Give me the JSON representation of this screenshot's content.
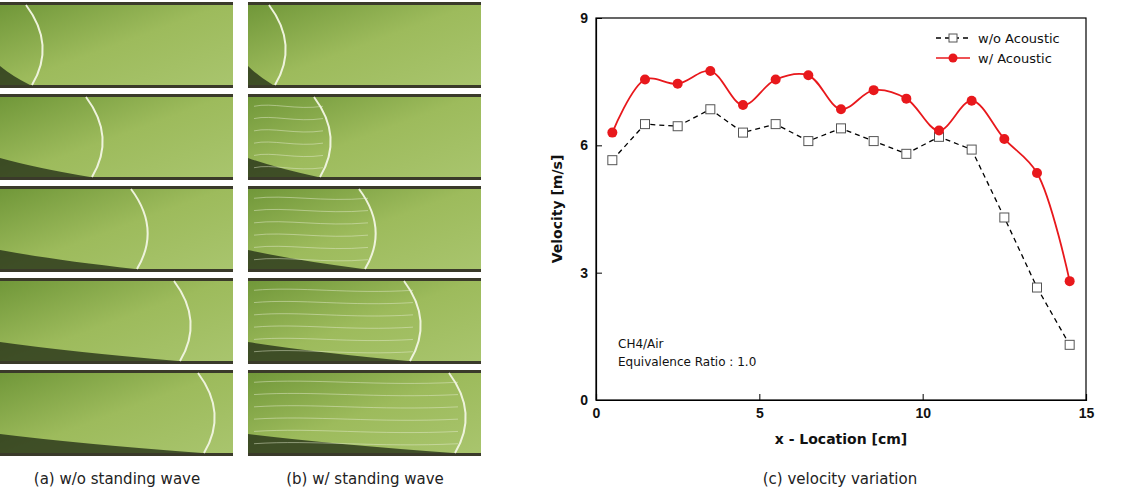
{
  "figure": {
    "captions": [
      "(a) w/o standing wave",
      "(b) w/ standing wave",
      "(c) velocity variation"
    ]
  },
  "chart_data": {
    "type": "line",
    "x_label": "x - Location [cm]",
    "y_label": "Velocity [m/s]",
    "annotations": [
      "CH4/Air",
      "Equivalence Ratio : 1.0"
    ],
    "x": [
      0.5,
      1.5,
      2.5,
      3.5,
      4.5,
      5.5,
      6.5,
      7.5,
      8.5,
      9.5,
      10.5,
      11.5,
      12.5,
      13.5,
      14.5
    ],
    "series": [
      {
        "name": "w/o Acoustic",
        "color": "#000000",
        "marker": "square",
        "line_style": "dashed",
        "values": [
          5.65,
          6.5,
          6.45,
          6.85,
          6.3,
          6.5,
          6.1,
          6.4,
          6.1,
          5.8,
          6.2,
          5.9,
          4.3,
          2.65,
          1.3
        ]
      },
      {
        "name": "w/ Acoustic",
        "color": "#e8181c",
        "marker": "circle",
        "line_style": "solid",
        "values": [
          6.3,
          7.55,
          7.45,
          7.75,
          6.95,
          7.55,
          7.65,
          6.85,
          7.3,
          7.1,
          6.35,
          7.05,
          6.15,
          5.35,
          2.8
        ]
      }
    ],
    "xlim": [
      0,
      15
    ],
    "xticks": [
      0,
      5,
      10,
      15
    ],
    "ylim": [
      0,
      9
    ],
    "yticks": [
      0,
      3,
      6,
      9
    ],
    "legend": "upper right",
    "grid": false
  }
}
